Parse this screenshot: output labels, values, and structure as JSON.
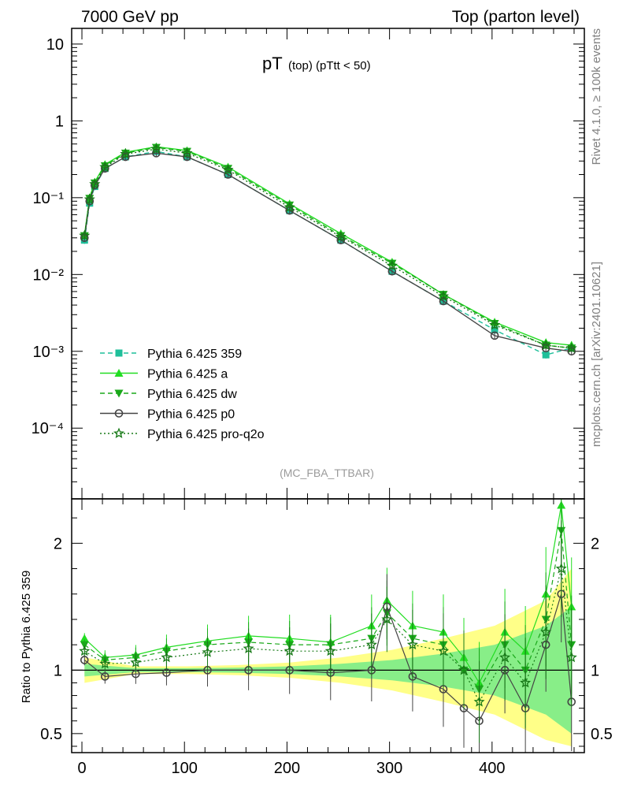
{
  "header": {
    "left": "7000 GeV pp",
    "right": "Top (parton level)"
  },
  "side_labels": {
    "rivet": "Rivet 4.1.0, ≥ 100k events",
    "mcplots": "mcplots.cern.ch [arXiv:2401.10621]"
  },
  "colors": {
    "p359": "#1fbf9a",
    "a": "#22dd22",
    "dw": "#1aa81a",
    "p0": "#444444",
    "proq2o": "#187a18",
    "band_yellow": "#ffff88",
    "band_green": "#88ee88"
  },
  "chart_data": [
    {
      "type": "line",
      "title_main": "pT",
      "title_sub": "(top)  (pTtt < 50)",
      "analysis": "(MC_FBA_TTBAR)",
      "yscale": "log",
      "ylim": [
        1.2e-05,
        16
      ],
      "xlim": [
        -10,
        490
      ],
      "y_ticks": [
        {
          "v": 10,
          "label": "10"
        },
        {
          "v": 1,
          "label": "1"
        },
        {
          "v": 0.1,
          "label": "10⁻¹"
        },
        {
          "v": 0.01,
          "label": "10⁻²"
        },
        {
          "v": 0.001,
          "label": "10⁻³"
        },
        {
          "v": 0.0001,
          "label": "10⁻⁴"
        }
      ],
      "legend": [
        {
          "key": "p359",
          "label": "Pythia 6.425 359",
          "marker": "square",
          "dash": "dashed"
        },
        {
          "key": "a",
          "label": "Pythia 6.425 a",
          "marker": "triangle-up",
          "dash": "solid"
        },
        {
          "key": "dw",
          "label": "Pythia 6.425 dw",
          "marker": "triangle-down",
          "dash": "dashed"
        },
        {
          "key": "p0",
          "label": "Pythia 6.425 p0",
          "marker": "circle-open",
          "dash": "solid"
        },
        {
          "key": "proq2o",
          "label": "Pythia 6.425 pro-q2o",
          "marker": "star-open",
          "dash": "dotted"
        }
      ],
      "x": [
        2.5,
        7.5,
        12.5,
        22.5,
        42.5,
        72.5,
        102.5,
        142.5,
        202.5,
        252.5,
        302.5,
        352.5,
        402.5,
        452.5,
        477.5
      ],
      "series": [
        {
          "key": "p359",
          "values": [
            0.028,
            0.085,
            0.14,
            0.24,
            0.34,
            0.4,
            0.34,
            0.2,
            0.068,
            0.028,
            0.011,
            0.0045,
            0.0019,
            0.0009,
            0.0011
          ]
        },
        {
          "key": "a",
          "values": [
            0.033,
            0.1,
            0.16,
            0.27,
            0.39,
            0.46,
            0.41,
            0.25,
            0.083,
            0.034,
            0.0145,
            0.0055,
            0.0024,
            0.0013,
            0.0012
          ]
        },
        {
          "key": "dw",
          "values": [
            0.032,
            0.098,
            0.155,
            0.26,
            0.38,
            0.45,
            0.4,
            0.24,
            0.08,
            0.032,
            0.014,
            0.0055,
            0.0023,
            0.0012,
            0.0011
          ]
        },
        {
          "key": "p0",
          "values": [
            0.03,
            0.09,
            0.145,
            0.24,
            0.34,
            0.38,
            0.34,
            0.2,
            0.068,
            0.028,
            0.011,
            0.0045,
            0.0016,
            0.0011,
            0.001
          ]
        },
        {
          "key": "proq2o",
          "values": [
            0.032,
            0.095,
            0.15,
            0.25,
            0.37,
            0.43,
            0.38,
            0.23,
            0.075,
            0.031,
            0.013,
            0.0052,
            0.0022,
            0.0012,
            0.0011
          ]
        }
      ]
    },
    {
      "type": "line",
      "ylabel": "Ratio to Pythia 6.425 359",
      "xlim": [
        -10,
        490
      ],
      "ylim": [
        0.35,
        2.35
      ],
      "x_ticks": [
        0,
        100,
        200,
        300,
        400
      ],
      "y_ticks": [
        {
          "v": 2,
          "label": "2"
        },
        {
          "v": 1,
          "label": "1"
        },
        {
          "v": 0.5,
          "label": "0.5"
        }
      ],
      "x": [
        2.5,
        22.5,
        52.5,
        82.5,
        122.5,
        162.5,
        202.5,
        242.5,
        282.5,
        297.5,
        322.5,
        352.5,
        372.5,
        387.5,
        412.5,
        432.5,
        452.5,
        467.5,
        477.5
      ],
      "series": [
        {
          "key": "a",
          "values": [
            1.25,
            1.1,
            1.12,
            1.18,
            1.23,
            1.27,
            1.25,
            1.22,
            1.35,
            1.55,
            1.35,
            1.3,
            1.1,
            0.9,
            1.3,
            1.15,
            1.6,
            2.3,
            1.5
          ]
        },
        {
          "key": "dw",
          "values": [
            1.2,
            1.08,
            1.1,
            1.15,
            1.2,
            1.22,
            1.2,
            1.2,
            1.25,
            1.45,
            1.25,
            1.2,
            1.0,
            0.85,
            1.2,
            1.0,
            1.4,
            2.1,
            1.2
          ]
        },
        {
          "key": "p0",
          "values": [
            1.08,
            0.95,
            0.97,
            0.98,
            1.0,
            1.0,
            1.0,
            0.98,
            1.0,
            1.5,
            0.95,
            0.85,
            0.7,
            0.6,
            1.0,
            0.7,
            1.2,
            1.6,
            0.75
          ]
        },
        {
          "key": "proq2o",
          "values": [
            1.15,
            1.05,
            1.06,
            1.1,
            1.14,
            1.17,
            1.15,
            1.15,
            1.2,
            1.4,
            1.2,
            1.15,
            1.0,
            0.75,
            1.1,
            0.9,
            1.3,
            1.8,
            1.1
          ]
        }
      ],
      "uncertainty_band": {
        "x": [
          2.5,
          52.5,
          102.5,
          152.5,
          202.5,
          252.5,
          302.5,
          352.5,
          402.5,
          452.5,
          477.5
        ],
        "yellow_lo": [
          0.9,
          0.97,
          0.97,
          0.96,
          0.94,
          0.9,
          0.84,
          0.75,
          0.65,
          0.45,
          0.4
        ],
        "yellow_hi": [
          1.1,
          1.03,
          1.03,
          1.04,
          1.06,
          1.1,
          1.16,
          1.25,
          1.35,
          1.55,
          1.8
        ],
        "green_lo": [
          0.95,
          0.985,
          0.985,
          0.98,
          0.97,
          0.95,
          0.92,
          0.87,
          0.8,
          0.65,
          0.5
        ],
        "green_hi": [
          1.05,
          1.015,
          1.015,
          1.02,
          1.03,
          1.05,
          1.08,
          1.13,
          1.2,
          1.35,
          1.5
        ]
      }
    }
  ]
}
